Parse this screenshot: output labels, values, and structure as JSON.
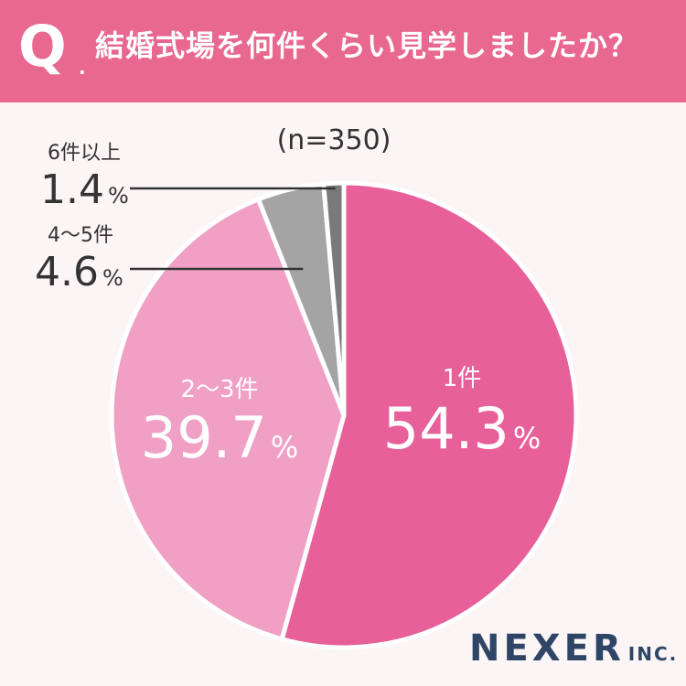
{
  "header": {
    "q_mark": "Q",
    "q_dot": ".",
    "question": "結婚式場を何件くらい見学しましたか？"
  },
  "sample_size": "(n=350)",
  "colors": {
    "header_bg": "#e8688f",
    "slice_1": "#e8609a",
    "slice_2": "#f0a0c4",
    "slice_3": "#a4a4a4",
    "slice_4": "#7a7a7a",
    "logo": "#2e4566"
  },
  "chart_data": {
    "type": "pie",
    "title": "結婚式場を何件くらい見学しましたか？",
    "n": 350,
    "unit": "%",
    "slices": [
      {
        "label": "1件",
        "value": 54.3,
        "display": "54.3"
      },
      {
        "label": "2〜3件",
        "value": 39.7,
        "display": "39.7"
      },
      {
        "label": "4〜5件",
        "value": 4.6,
        "display": "4.6"
      },
      {
        "label": "6件以上",
        "value": 1.4,
        "display": "1.4"
      }
    ]
  },
  "logo": {
    "main": "NEXER",
    "sub": "INC."
  }
}
